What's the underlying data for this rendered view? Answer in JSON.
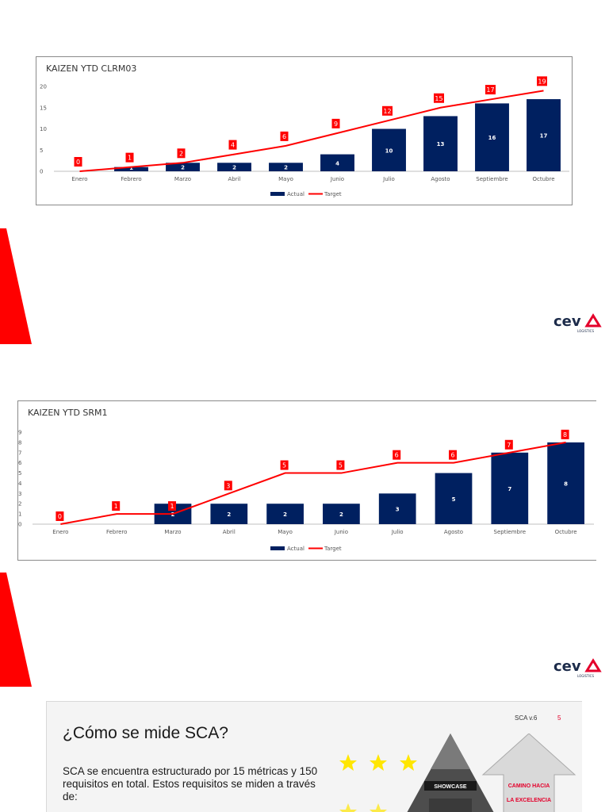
{
  "chart_data": [
    {
      "type": "bar",
      "title": "KAIZEN YTD CLRM03",
      "categories": [
        "Enero",
        "Febrero",
        "Marzo",
        "Abril",
        "Mayo",
        "Junio",
        "Julio",
        "Agosto",
        "Septiembre",
        "Octubre"
      ],
      "ylim": [
        0,
        20
      ],
      "yticks": [
        0,
        5,
        10,
        15,
        20
      ],
      "series": [
        {
          "name": "Actual",
          "type": "bar",
          "color": "#002060",
          "values": [
            0,
            1,
            2,
            2,
            2,
            4,
            10,
            13,
            16,
            17
          ]
        },
        {
          "name": "Target",
          "type": "line",
          "color": "#ff0000",
          "values": [
            0,
            1,
            2,
            4,
            6,
            9,
            12,
            15,
            17,
            19
          ]
        }
      ],
      "legend": "bottom-center"
    },
    {
      "type": "bar",
      "title": "KAIZEN YTD SRM1",
      "categories": [
        "Enero",
        "Febrero",
        "Marzo",
        "Abril",
        "Mayo",
        "Junio",
        "Julio",
        "Agosto",
        "Septiembre",
        "Octubre"
      ],
      "ylim": [
        0,
        9
      ],
      "yticks": [
        0,
        1,
        2,
        3,
        4,
        5,
        6,
        7,
        8,
        9
      ],
      "series": [
        {
          "name": "Actual",
          "type": "bar",
          "color": "#002060",
          "values": [
            0,
            0,
            2,
            2,
            2,
            2,
            3,
            5,
            7,
            8
          ]
        },
        {
          "name": "Target",
          "type": "line",
          "color": "#ff0000",
          "values": [
            0,
            1,
            1,
            3,
            5,
            5,
            6,
            6,
            7,
            8
          ]
        }
      ],
      "legend": "bottom-center"
    }
  ],
  "logo": {
    "text": "ceva",
    "subtext": "LOGISTICS",
    "color": "#1c2b4a",
    "accent": "#e4002b"
  },
  "slide": {
    "title": "¿Cómo se mide SCA?",
    "version": "SCA v.6",
    "page": "5",
    "body": "SCA se encuentra estructurado por 15 métricas y 150 requisitos en total. Estos requisitos se miden a través de:",
    "pyramid_label": "SHOWCASE",
    "arrow_label_1": "CAMINO HACIA",
    "arrow_label_2": "LA EXCELENCIA"
  },
  "colors": {
    "bar": "#002060",
    "target": "#ff0000",
    "accent_red": "#e4002b",
    "star": "#ffe600"
  }
}
